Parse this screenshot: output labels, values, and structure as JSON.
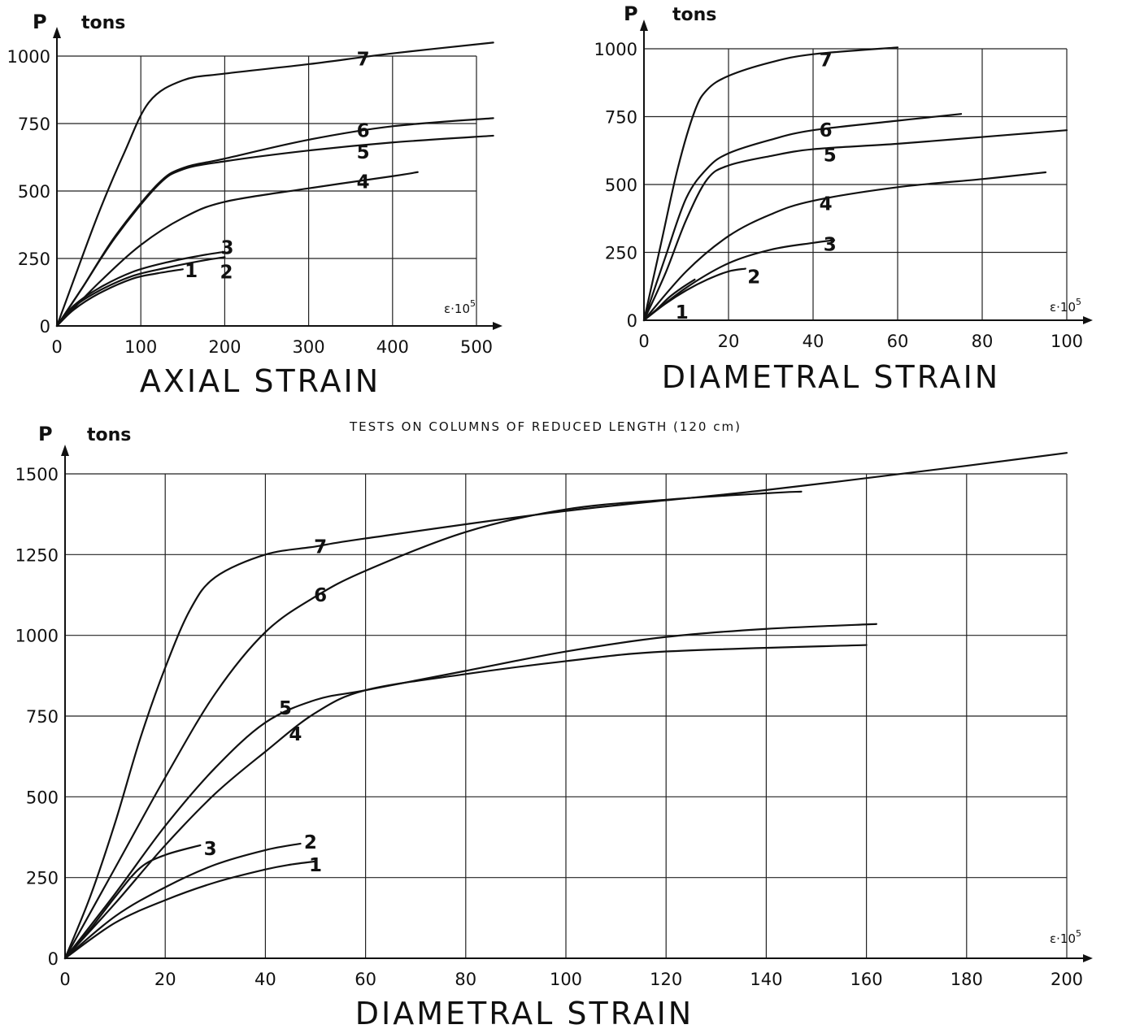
{
  "top_title": "TESTS ON COLUMNS OF REDUCED LENGTH (120 cm)",
  "chart_data": [
    {
      "type": "line",
      "xlabel": "AXIAL STRAIN",
      "ylabel": "P",
      "yunit": "tons",
      "xunit": "ε·10",
      "xunit_sup": "5",
      "xlim": [
        0,
        500
      ],
      "ylim": [
        0,
        1000
      ],
      "xticks": [
        0,
        100,
        200,
        300,
        400,
        500
      ],
      "yticks": [
        0,
        250,
        500,
        750,
        1000
      ],
      "grid": true,
      "series": [
        {
          "name": "1",
          "label_at": [
            160,
            205
          ],
          "x": [
            0,
            20,
            50,
            90,
            120,
            150
          ],
          "y": [
            0,
            60,
            120,
            175,
            195,
            210
          ]
        },
        {
          "name": "2",
          "label_at": [
            202,
            200
          ],
          "x": [
            0,
            20,
            50,
            90,
            130,
            170,
            200
          ],
          "y": [
            0,
            70,
            130,
            185,
            215,
            240,
            255
          ]
        },
        {
          "name": "3",
          "label_at": [
            203,
            290
          ],
          "x": [
            0,
            20,
            50,
            90,
            130,
            170,
            200
          ],
          "y": [
            0,
            75,
            140,
            200,
            235,
            260,
            275
          ]
        },
        {
          "name": "4",
          "label_at": [
            365,
            535
          ],
          "x": [
            0,
            50,
            100,
            150,
            200,
            300,
            400,
            430
          ],
          "y": [
            0,
            160,
            300,
            400,
            460,
            510,
            555,
            570
          ]
        },
        {
          "name": "5",
          "label_at": [
            365,
            645
          ],
          "x": [
            0,
            30,
            70,
            120,
            150,
            200,
            300,
            400,
            520
          ],
          "y": [
            0,
            140,
            330,
            520,
            580,
            610,
            650,
            680,
            705
          ]
        },
        {
          "name": "6",
          "label_at": [
            365,
            725
          ],
          "x": [
            0,
            30,
            70,
            120,
            150,
            200,
            300,
            400,
            520
          ],
          "y": [
            0,
            140,
            335,
            525,
            585,
            620,
            690,
            740,
            770
          ]
        },
        {
          "name": "7",
          "label_at": [
            365,
            990
          ],
          "x": [
            0,
            20,
            50,
            80,
            110,
            150,
            200,
            300,
            400,
            520
          ],
          "y": [
            0,
            170,
            420,
            640,
            830,
            910,
            935,
            970,
            1010,
            1050
          ]
        }
      ]
    },
    {
      "type": "line",
      "xlabel": "DIAMETRAL STRAIN",
      "ylabel": "P",
      "yunit": "tons",
      "xunit": "ε·10",
      "xunit_sup": "5",
      "xlim": [
        0,
        100
      ],
      "ylim": [
        0,
        1000
      ],
      "xticks": [
        0,
        20,
        40,
        60,
        80,
        100
      ],
      "yticks": [
        0,
        250,
        500,
        750,
        1000
      ],
      "grid": true,
      "series": [
        {
          "name": "1",
          "label_at": [
            9,
            30
          ],
          "x": [
            0,
            3,
            6,
            9,
            12
          ],
          "y": [
            0,
            40,
            85,
            120,
            150
          ]
        },
        {
          "name": "2",
          "label_at": [
            26,
            160
          ],
          "x": [
            0,
            5,
            10,
            15,
            20,
            24
          ],
          "y": [
            0,
            60,
            110,
            150,
            180,
            190
          ]
        },
        {
          "name": "3",
          "label_at": [
            44,
            280
          ],
          "x": [
            0,
            10,
            20,
            30,
            40,
            45
          ],
          "y": [
            0,
            120,
            210,
            260,
            285,
            295
          ]
        },
        {
          "name": "4",
          "label_at": [
            43,
            430
          ],
          "x": [
            0,
            10,
            20,
            30,
            40,
            60,
            80,
            95
          ],
          "y": [
            0,
            180,
            310,
            390,
            440,
            490,
            520,
            545
          ]
        },
        {
          "name": "5",
          "label_at": [
            44,
            610
          ],
          "x": [
            0,
            5,
            10,
            15,
            20,
            30,
            40,
            60,
            80,
            100
          ],
          "y": [
            0,
            170,
            370,
            520,
            570,
            605,
            630,
            650,
            675,
            700
          ]
        },
        {
          "name": "6",
          "label_at": [
            43,
            700
          ],
          "x": [
            0,
            5,
            10,
            15,
            20,
            30,
            40,
            60,
            75
          ],
          "y": [
            0,
            230,
            450,
            560,
            615,
            665,
            700,
            735,
            760
          ]
        },
        {
          "name": "7",
          "label_at": [
            43,
            960
          ],
          "x": [
            0,
            4,
            8,
            12,
            15,
            20,
            30,
            40,
            60
          ],
          "y": [
            0,
            280,
            560,
            770,
            850,
            900,
            950,
            980,
            1005
          ]
        }
      ]
    },
    {
      "type": "line",
      "xlabel": "DIAMETRAL STRAIN",
      "ylabel": "P",
      "yunit": "tons",
      "xunit": "ε·10",
      "xunit_sup": "5",
      "xlim": [
        0,
        200
      ],
      "ylim": [
        0,
        1500
      ],
      "xticks": [
        0,
        20,
        40,
        60,
        80,
        100,
        120,
        140,
        160,
        180,
        200
      ],
      "yticks": [
        0,
        250,
        500,
        750,
        1000,
        1250,
        1500
      ],
      "grid": true,
      "series": [
        {
          "name": "1",
          "label_at": [
            50,
            290
          ],
          "x": [
            0,
            10,
            20,
            30,
            40,
            45,
            50
          ],
          "y": [
            0,
            110,
            180,
            235,
            275,
            290,
            300
          ]
        },
        {
          "name": "2",
          "label_at": [
            49,
            360
          ],
          "x": [
            0,
            10,
            20,
            30,
            40,
            47
          ],
          "y": [
            0,
            130,
            220,
            290,
            335,
            355
          ]
        },
        {
          "name": "3",
          "label_at": [
            29,
            340
          ],
          "x": [
            0,
            5,
            10,
            15,
            20,
            27
          ],
          "y": [
            0,
            90,
            190,
            280,
            320,
            350
          ]
        },
        {
          "name": "4",
          "label_at": [
            46,
            695
          ],
          "x": [
            0,
            10,
            20,
            30,
            40,
            50,
            60,
            80,
            100,
            120,
            160
          ],
          "y": [
            0,
            170,
            350,
            510,
            640,
            760,
            830,
            880,
            920,
            950,
            970
          ]
        },
        {
          "name": "5",
          "label_at": [
            44,
            775
          ],
          "x": [
            0,
            10,
            20,
            30,
            40,
            50,
            60,
            80,
            100,
            120,
            140,
            162
          ],
          "y": [
            0,
            200,
            410,
            590,
            730,
            800,
            830,
            890,
            950,
            995,
            1020,
            1035
          ]
        },
        {
          "name": "6",
          "label_at": [
            51,
            1125
          ],
          "x": [
            0,
            10,
            20,
            30,
            40,
            50,
            60,
            80,
            100,
            120,
            140,
            147
          ],
          "y": [
            0,
            280,
            560,
            820,
            1010,
            1120,
            1200,
            1320,
            1390,
            1420,
            1440,
            1445
          ]
        },
        {
          "name": "7",
          "label_at": [
            51,
            1275
          ],
          "x": [
            0,
            5,
            10,
            15,
            20,
            25,
            30,
            40,
            50,
            60,
            100,
            140,
            180,
            200
          ],
          "y": [
            0,
            190,
            420,
            680,
            900,
            1080,
            1180,
            1250,
            1275,
            1300,
            1385,
            1450,
            1525,
            1565
          ]
        }
      ]
    }
  ]
}
